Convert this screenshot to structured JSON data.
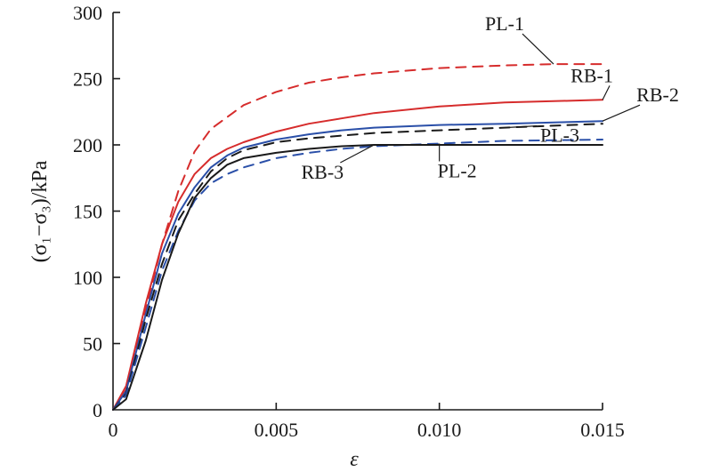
{
  "chart_data": {
    "type": "line",
    "xlabel": "ε",
    "ylabel": "(σ₁−σ₃)/kPa",
    "xlim": [
      0,
      0.015
    ],
    "ylim": [
      0,
      300
    ],
    "x_ticks": [
      "0",
      "0.005",
      "0.010",
      "0.015"
    ],
    "x_tick_values": [
      0,
      0.005,
      0.01,
      0.015
    ],
    "y_ticks": [
      "0",
      "50",
      "100",
      "150",
      "200",
      "250",
      "300"
    ],
    "y_tick_values": [
      0,
      50,
      100,
      150,
      200,
      250,
      300
    ],
    "grid": false,
    "series": [
      {
        "name": "PL-1",
        "color": "#d62c2c",
        "dash": true,
        "x": [
          0,
          0.0004,
          0.001,
          0.0015,
          0.002,
          0.0025,
          0.003,
          0.004,
          0.005,
          0.006,
          0.007,
          0.008,
          0.01,
          0.012,
          0.0135,
          0.015
        ],
        "y": [
          0,
          15,
          75,
          125,
          165,
          195,
          212,
          230,
          240,
          247,
          251,
          254,
          258,
          260,
          261,
          261
        ]
      },
      {
        "name": "RB-1",
        "color": "#d62c2c",
        "dash": false,
        "x": [
          0,
          0.0004,
          0.001,
          0.0015,
          0.002,
          0.0025,
          0.003,
          0.0035,
          0.004,
          0.005,
          0.006,
          0.007,
          0.008,
          0.01,
          0.012,
          0.015
        ],
        "y": [
          0,
          18,
          80,
          125,
          157,
          178,
          190,
          197,
          202,
          210,
          216,
          220,
          224,
          229,
          232,
          234
        ]
      },
      {
        "name": "RB-2",
        "color": "#2a4fa8",
        "dash": false,
        "x": [
          0,
          0.0004,
          0.001,
          0.0015,
          0.002,
          0.0025,
          0.003,
          0.0035,
          0.004,
          0.005,
          0.006,
          0.007,
          0.008,
          0.01,
          0.012,
          0.015
        ],
        "y": [
          0,
          14,
          72,
          118,
          148,
          168,
          183,
          192,
          198,
          204,
          208,
          211,
          213,
          215,
          216,
          218
        ]
      },
      {
        "name": "PL-3",
        "color": "#1a1a1a",
        "dash": true,
        "x": [
          0,
          0.0004,
          0.001,
          0.0015,
          0.002,
          0.0025,
          0.003,
          0.0035,
          0.004,
          0.005,
          0.006,
          0.007,
          0.008,
          0.01,
          0.012,
          0.015
        ],
        "y": [
          0,
          12,
          68,
          110,
          143,
          163,
          180,
          190,
          196,
          202,
          205,
          207,
          209,
          211,
          213,
          216
        ]
      },
      {
        "name": "PL-2",
        "color": "#2a4fa8",
        "dash": true,
        "x": [
          0,
          0.0004,
          0.001,
          0.0015,
          0.002,
          0.0025,
          0.003,
          0.0035,
          0.004,
          0.005,
          0.006,
          0.007,
          0.008,
          0.01,
          0.012,
          0.015
        ],
        "y": [
          0,
          11,
          62,
          105,
          135,
          158,
          171,
          178,
          183,
          190,
          194,
          197,
          199,
          201,
          203,
          204
        ]
      },
      {
        "name": "RB-3",
        "color": "#1a1a1a",
        "dash": false,
        "x": [
          0,
          0.0004,
          0.001,
          0.0015,
          0.002,
          0.0025,
          0.003,
          0.0035,
          0.004,
          0.005,
          0.006,
          0.007,
          0.008,
          0.01,
          0.012,
          0.015
        ],
        "y": [
          0,
          8,
          52,
          98,
          133,
          160,
          175,
          185,
          190,
          194,
          197,
          199,
          200,
          200,
          200,
          200
        ]
      }
    ]
  }
}
